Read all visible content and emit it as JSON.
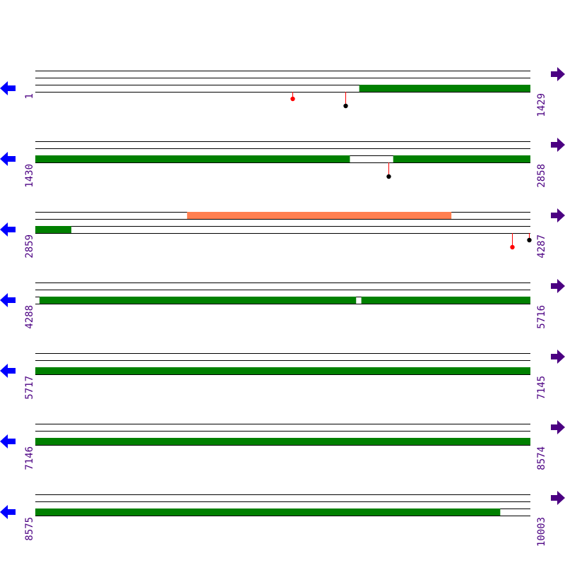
{
  "colors": {
    "chain": "#008000",
    "region": "#ff7f50",
    "line": "#000000",
    "label": "#4b0082",
    "left_arrow": "#0000ff",
    "right_arrow": "#4b0082",
    "marker_red": "#ff0000",
    "marker_black": "#000000"
  },
  "icons": {
    "left": "arrow-left-icon",
    "right": "arrow-right-icon"
  },
  "rows": [
    {
      "start": "1",
      "end": "1429",
      "s": 1,
      "e": 1429,
      "chain": [
        [
          936,
          1429
        ]
      ],
      "regions": [],
      "markers": [
        {
          "pos": 744,
          "color": "red",
          "len": 10
        },
        {
          "pos": 895,
          "color": "black",
          "len": 20
        }
      ]
    },
    {
      "start": "1430",
      "end": "2858",
      "s": 1430,
      "e": 2858,
      "chain": [
        [
          1430,
          2337
        ],
        [
          2463,
          2858
        ]
      ],
      "regions": [],
      "markers": [
        {
          "pos": 2449,
          "color": "black",
          "len": 20
        }
      ]
    },
    {
      "start": "2859",
      "end": "4287",
      "s": 2859,
      "e": 4287,
      "chain": [
        [
          2859,
          2962
        ]
      ],
      "regions": [
        [
          3297,
          4060
        ]
      ],
      "markers": [
        {
          "pos": 4235,
          "color": "red",
          "len": 20
        },
        {
          "pos": 4283,
          "color": "black",
          "len": 10
        }
      ]
    },
    {
      "start": "4288",
      "end": "5716",
      "s": 4288,
      "e": 5716,
      "chain": [
        [
          4300,
          5213
        ],
        [
          5229,
          5716
        ]
      ],
      "regions": [],
      "markers": []
    },
    {
      "start": "5717",
      "end": "7145",
      "s": 5717,
      "e": 7145,
      "chain": [
        [
          5717,
          7145
        ]
      ],
      "regions": [],
      "markers": []
    },
    {
      "start": "7146",
      "end": "8574",
      "s": 7146,
      "e": 8574,
      "chain": [
        [
          7146,
          8574
        ]
      ],
      "regions": [],
      "markers": []
    },
    {
      "start": "8575",
      "end": "10003",
      "s": 8575,
      "e": 10003,
      "chain": [
        [
          8575,
          9916
        ]
      ],
      "regions": [],
      "markers": []
    }
  ]
}
